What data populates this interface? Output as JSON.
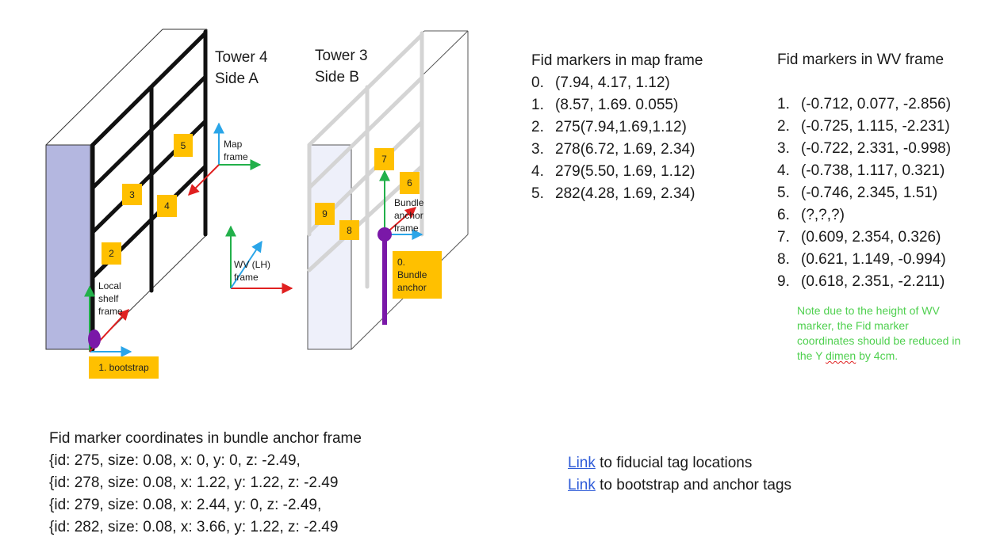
{
  "towers": {
    "tower4": {
      "line1": "Tower 4",
      "line2": "Side A"
    },
    "tower3": {
      "line1": "Tower 3",
      "line2": "Side B"
    }
  },
  "frames": {
    "map": {
      "line1": "Map",
      "line2": "frame"
    },
    "wv": {
      "line1": "WV (LH)",
      "line2": "frame"
    },
    "local_shelf": {
      "line1": "Local",
      "line2": "shelf",
      "line3": "frame"
    },
    "bundle_anchor_frame": {
      "line1": "Bundle",
      "line2": "anchor",
      "line3": "frame"
    }
  },
  "tags": [
    "5",
    "3",
    "4",
    "2",
    "7",
    "6",
    "9",
    "8"
  ],
  "bootstrap_tag": "1. bootstrap",
  "bundle_anchor_tag": {
    "line1": "0.",
    "line2": "Bundle",
    "line3": "anchor"
  },
  "map_panel": {
    "title": "Fid markers in map frame",
    "items": [
      {
        "num": "0.",
        "text": "(7.94, 4.17, 1.12)"
      },
      {
        "num": "1.",
        "text": "(8.57, 1.69. 0.055)"
      },
      {
        "num": "2.",
        "text": "275(7.94,1.69,1.12)"
      },
      {
        "num": "3.",
        "text": "278(6.72, 1.69, 2.34)"
      },
      {
        "num": "4.",
        "text": "279(5.50, 1.69, 1.12)"
      },
      {
        "num": "5.",
        "text": "282(4.28, 1.69, 2.34)"
      }
    ]
  },
  "wv_panel": {
    "title": "Fid markers in WV frame",
    "items": [
      {
        "num": "1.",
        "text": "(-0.712, 0.077, -2.856)"
      },
      {
        "num": "2.",
        "text": "(-0.725, 1.115, -2.231)"
      },
      {
        "num": "3.",
        "text": "(-0.722, 2.331, -0.998)"
      },
      {
        "num": "4.",
        "text": "(-0.738, 1.117, 0.321)"
      },
      {
        "num": "5.",
        "text": "(-0.746, 2.345, 1.51)"
      },
      {
        "num": "6.",
        "text": "(?,?,?)"
      },
      {
        "num": "7.",
        "text": "(0.609, 2.354, 0.326)"
      },
      {
        "num": "8.",
        "text": "(0.621, 1.149, -0.994)"
      },
      {
        "num": "9.",
        "text": "(0.618, 2.351, -2.211)"
      }
    ],
    "note_before": "Note due to the height of WV marker, the Fid marker coordinates should be reduced in the Y ",
    "note_underlined": "dimen",
    "note_after": " by 4cm."
  },
  "bundle_coords": {
    "title": "Fid marker coordinates in bundle anchor frame",
    "lines": [
      "{id: 275, size: 0.08, x: 0, y: 0, z: -2.49,",
      "{id: 278, size: 0.08, x: 1.22, y: 1.22, z: -2.49",
      "{id: 279, size: 0.08, x: 2.44, y: 0, z: -2.49,",
      "{id: 282, size: 0.08, x: 3.66, y: 1.22, z: -2.49"
    ]
  },
  "links": [
    {
      "link_text": "Link",
      "rest": " to fiducial tag locations"
    },
    {
      "link_text": "Link",
      "rest": " to bootstrap and anchor tags"
    }
  ],
  "colors": {
    "x_axis": "#2aa5e8",
    "y_axis": "#22b04a",
    "z_axis": "#e02020",
    "side_panel": "#b4b7e0",
    "tag": "#ffc000",
    "anchor_post": "#7a18a8",
    "note": "#4fd04f",
    "link": "#2e5bd8"
  }
}
